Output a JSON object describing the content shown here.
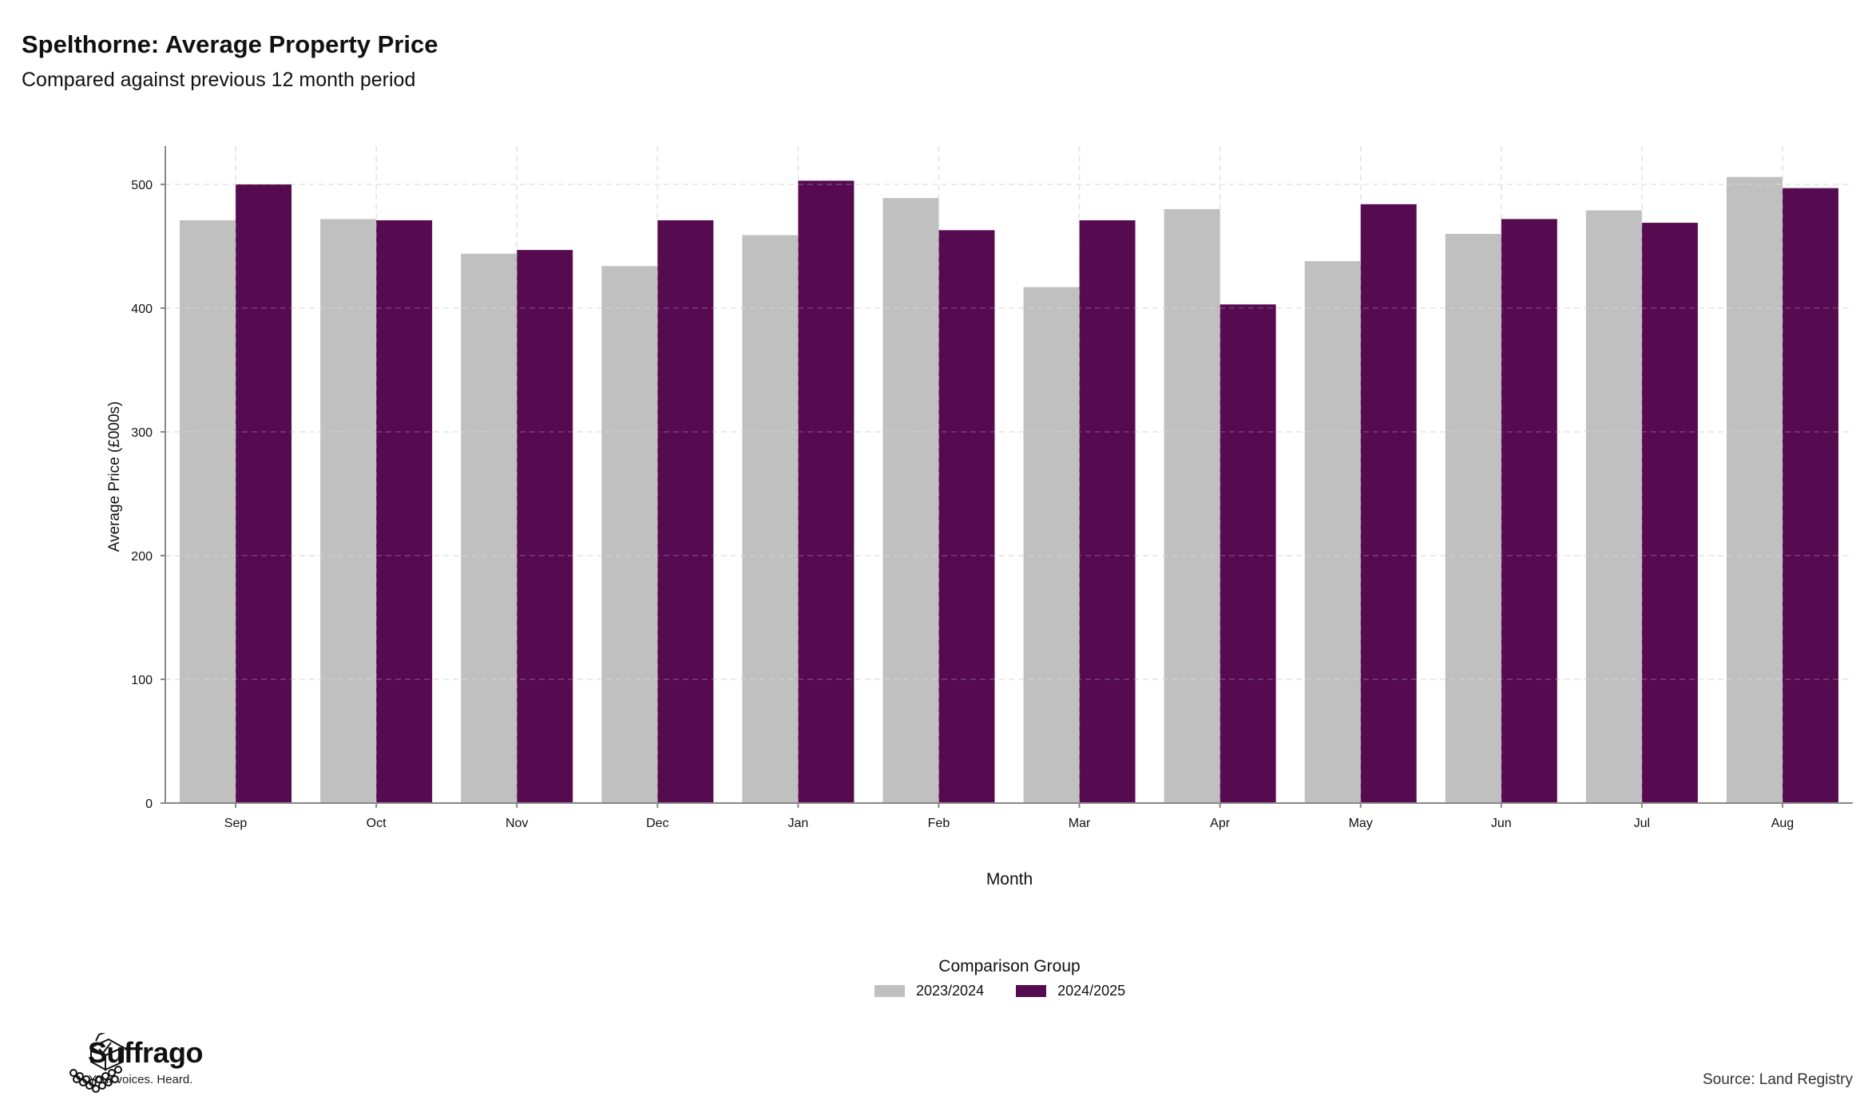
{
  "header": {
    "title": "Spelthorne: Average Property Price",
    "subtitle": "Compared against previous 12 month period"
  },
  "chart_data": {
    "type": "bar",
    "xlabel": "Month",
    "ylabel": "Average Price (£000s)",
    "ylim": [
      0,
      530
    ],
    "yticks": [
      0,
      100,
      200,
      300,
      400,
      500
    ],
    "grid": true,
    "legend_title": "Comparison Group",
    "legend_position": "bottom",
    "categories": [
      "Sep",
      "Oct",
      "Nov",
      "Dec",
      "Jan",
      "Feb",
      "Mar",
      "Apr",
      "May",
      "Jun",
      "Jul",
      "Aug"
    ],
    "series": [
      {
        "name": "2023/2024",
        "color": "#c0c0c0",
        "values": [
          471,
          472,
          444,
          434,
          459,
          489,
          417,
          480,
          438,
          460,
          479,
          506
        ]
      },
      {
        "name": "2024/2025",
        "color": "#560b51",
        "values": [
          500,
          471,
          447,
          471,
          503,
          463,
          471,
          403,
          484,
          472,
          469,
          497
        ]
      }
    ]
  },
  "footer": {
    "brand": "Suffrago",
    "tagline": "Your voices. Heard.",
    "source": "Source: Land Registry",
    "logo_icon": "ballot-box-icon"
  }
}
